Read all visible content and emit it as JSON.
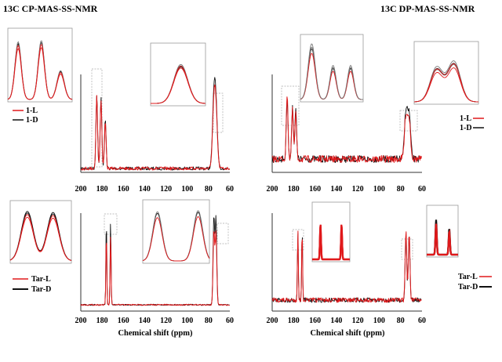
{
  "header": {
    "cp_title": "13C CP-MAS-SS-NMR",
    "dp_title": "13C DP-MAS-SS-NMR"
  },
  "colors": {
    "red": "#e0191b",
    "black": "#111111",
    "gray": "#777777"
  },
  "chart_data": [
    {
      "type": "line",
      "id": "cp-1",
      "title": "13C CP-MAS-SS-NMR",
      "xlabel": "",
      "xlim": [
        200,
        60
      ],
      "x_ticks": [
        200,
        180,
        160,
        140,
        120,
        100,
        80,
        60
      ],
      "series": [
        {
          "name": "1-L",
          "color": "red",
          "peaks": [
            {
              "x": 185,
              "y": 0.88
            },
            {
              "x": 181,
              "y": 0.84
            },
            {
              "x": 177,
              "y": 0.55
            },
            {
              "x": 75,
              "y": 0.7
            },
            {
              "x": 73,
              "y": 0.62
            }
          ]
        },
        {
          "name": "1-D",
          "color": "black",
          "peaks": [
            {
              "x": 185,
              "y": 0.9
            },
            {
              "x": 181,
              "y": 0.86
            },
            {
              "x": 177,
              "y": 0.6
            },
            {
              "x": 75,
              "y": 0.78
            },
            {
              "x": 73,
              "y": 0.68
            }
          ]
        }
      ]
    },
    {
      "type": "line",
      "id": "dp-1",
      "title": "13C DP-MAS-SS-NMR",
      "xlabel": "",
      "xlim": [
        200,
        60
      ],
      "x_ticks": [
        200,
        180,
        160,
        140,
        120,
        100,
        80,
        60
      ],
      "series": [
        {
          "name": "1-L",
          "color": "red",
          "peaks": [
            {
              "x": 186,
              "y": 0.85
            },
            {
              "x": 181,
              "y": 0.62
            },
            {
              "x": 178,
              "y": 0.58
            },
            {
              "x": 75,
              "y": 0.55
            },
            {
              "x": 72,
              "y": 0.5
            }
          ]
        },
        {
          "name": "1-D",
          "color": "black",
          "peaks": [
            {
              "x": 186,
              "y": 0.8
            },
            {
              "x": 181,
              "y": 0.7
            },
            {
              "x": 178,
              "y": 0.66
            },
            {
              "x": 75,
              "y": 0.62
            },
            {
              "x": 72,
              "y": 0.56
            }
          ]
        }
      ]
    },
    {
      "type": "line",
      "id": "cp-tar",
      "title": "",
      "xlabel": "Chemical shift (ppm)",
      "xlim": [
        200,
        60
      ],
      "x_ticks": [
        200,
        180,
        160,
        140,
        120,
        100,
        80,
        60
      ],
      "series": [
        {
          "name": "Tar-L",
          "color": "red",
          "peaks": [
            {
              "x": 176,
              "y": 0.8
            },
            {
              "x": 172,
              "y": 0.8
            },
            {
              "x": 75,
              "y": 0.82
            },
            {
              "x": 73,
              "y": 0.8
            }
          ]
        },
        {
          "name": "Tar-D",
          "color": "black",
          "peaks": [
            {
              "x": 176,
              "y": 0.95
            },
            {
              "x": 172,
              "y": 0.95
            },
            {
              "x": 75,
              "y": 0.98
            },
            {
              "x": 73,
              "y": 0.96
            }
          ]
        }
      ]
    },
    {
      "type": "line",
      "id": "dp-tar",
      "title": "",
      "xlabel": "Chemical shift (ppm)",
      "xlim": [
        200,
        60
      ],
      "x_ticks": [
        200,
        180,
        160,
        140,
        120,
        100,
        80,
        60
      ],
      "series": [
        {
          "name": "Tar-L",
          "color": "red",
          "peaks": [
            {
              "x": 176,
              "y": 0.9
            },
            {
              "x": 172,
              "y": 0.9
            },
            {
              "x": 75,
              "y": 0.88
            },
            {
              "x": 72,
              "y": 0.86
            }
          ]
        },
        {
          "name": "Tar-D",
          "color": "black",
          "peaks": [
            {
              "x": 176,
              "y": 0.88
            },
            {
              "x": 172,
              "y": 0.88
            },
            {
              "x": 75,
              "y": 0.86
            },
            {
              "x": 72,
              "y": 0.84
            }
          ]
        }
      ]
    }
  ]
}
